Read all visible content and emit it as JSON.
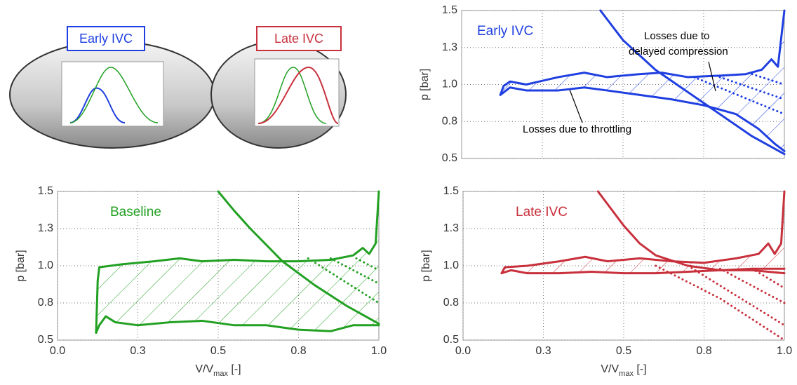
{
  "chart_data": [
    {
      "type": "line",
      "title": "Early IVC",
      "title_color": "#1f3fe0",
      "ylabel": "p [bar]",
      "xlim": [
        0,
        1
      ],
      "ylim": [
        0.5,
        1.5
      ],
      "xticks": [
        0.25,
        0.5,
        0.75
      ],
      "yticks": [
        0.5,
        {
          "value": 0.75,
          "label": "0.8"
        },
        {
          "value": 1,
          "label": "1.0"
        },
        {
          "value": 1.25,
          "label": "1.3"
        },
        1.5
      ],
      "grid": true,
      "annotations": [
        {
          "lines": [
            "Losses due to",
            "delayed compression"
          ]
        },
        {
          "lines": [
            "Losses due to throttling"
          ]
        }
      ],
      "hatch": [
        0,
        1
      ],
      "series": [
        {
          "color": "#1f3fe0",
          "x": [
            0.12,
            0.13,
            0.15,
            0.2,
            0.3,
            0.38,
            0.45,
            0.55,
            0.62,
            0.7,
            0.8,
            0.88,
            0.93,
            0.96,
            0.98,
            1.0
          ],
          "values": [
            0.93,
            0.99,
            1.02,
            1.0,
            1.05,
            1.08,
            1.05,
            1.07,
            1.08,
            1.05,
            1.06,
            1.07,
            1.1,
            1.17,
            1.12,
            1.5
          ]
        },
        {
          "color": "#1f3fe0",
          "x": [
            0.12,
            0.15,
            0.2,
            0.3,
            0.38,
            0.45,
            0.55,
            0.65,
            0.75,
            0.85,
            0.92,
            0.97,
            1.0
          ],
          "values": [
            0.93,
            0.98,
            0.96,
            0.96,
            0.98,
            0.96,
            0.93,
            0.9,
            0.86,
            0.8,
            0.7,
            0.6,
            0.55
          ]
        },
        {
          "color": "#1f3fe0",
          "x": [
            0.43,
            0.5,
            0.6,
            0.7,
            0.8,
            0.9,
            1.0
          ],
          "values": [
            1.5,
            1.3,
            1.1,
            0.95,
            0.8,
            0.65,
            0.53
          ]
        },
        {
          "color": "#1f3fe0",
          "dash": true,
          "x": [
            0.72,
            1.0
          ],
          "values": [
            1.05,
            0.8
          ]
        },
        {
          "color": "#1f3fe0",
          "dash": true,
          "x": [
            0.8,
            1.0
          ],
          "values": [
            1.05,
            0.9
          ]
        },
        {
          "color": "#1f3fe0",
          "dash": true,
          "x": [
            0.9,
            1.0
          ],
          "values": [
            1.07,
            1.0
          ]
        }
      ]
    },
    {
      "type": "line",
      "title": "Baseline",
      "title_color": "#22a022",
      "ylabel": "p [bar]",
      "xlabel_parts": [
        "V/V",
        "max",
        " [-]"
      ],
      "xlim": [
        0,
        1
      ],
      "ylim": [
        0.5,
        1.5
      ],
      "xticks": [
        {
          "value": 0,
          "label": "0.0"
        },
        {
          "value": 0.25,
          "label": "0.3"
        },
        0.5,
        {
          "value": 0.75,
          "label": "0.8"
        },
        {
          "value": 1,
          "label": "1.0"
        }
      ],
      "yticks": [
        0.5,
        {
          "value": 0.75,
          "label": "0.8"
        },
        {
          "value": 1,
          "label": "1.0"
        },
        {
          "value": 1.25,
          "label": "1.3"
        },
        1.5
      ],
      "grid": true,
      "hatch": [
        0,
        1
      ],
      "series": [
        {
          "color": "#22a022",
          "x": [
            0.12,
            0.125,
            0.13,
            0.2,
            0.3,
            0.38,
            0.45,
            0.55,
            0.65,
            0.75,
            0.85,
            0.92,
            0.95,
            0.97,
            0.99,
            1.0
          ],
          "values": [
            0.55,
            0.9,
            0.99,
            1.01,
            1.03,
            1.05,
            1.03,
            1.04,
            1.03,
            1.03,
            1.04,
            1.07,
            1.12,
            1.08,
            1.15,
            1.5
          ]
        },
        {
          "color": "#22a022",
          "x": [
            0.12,
            0.13,
            0.15,
            0.18,
            0.25,
            0.35,
            0.45,
            0.55,
            0.65,
            0.75,
            0.85,
            0.92,
            1.0
          ],
          "values": [
            0.55,
            0.6,
            0.66,
            0.62,
            0.6,
            0.62,
            0.63,
            0.6,
            0.6,
            0.57,
            0.56,
            0.6,
            0.6
          ]
        },
        {
          "color": "#22a022",
          "x": [
            0.5,
            0.55,
            0.6,
            0.65,
            0.7,
            0.75,
            0.8,
            0.85,
            0.9,
            0.95,
            1.0
          ],
          "values": [
            1.5,
            1.37,
            1.25,
            1.14,
            1.03,
            0.95,
            0.87,
            0.8,
            0.73,
            0.67,
            0.61
          ]
        },
        {
          "color": "#22a022",
          "dash": true,
          "x": [
            0.78,
            1.0
          ],
          "values": [
            1.05,
            0.75
          ]
        },
        {
          "color": "#22a022",
          "dash": true,
          "x": [
            0.85,
            1.0
          ],
          "values": [
            1.05,
            0.88
          ]
        },
        {
          "color": "#22a022",
          "dash": true,
          "x": [
            0.93,
            1.0
          ],
          "values": [
            1.05,
            0.97
          ]
        }
      ]
    },
    {
      "type": "line",
      "title": "Late IVC",
      "title_color": "#c8303c",
      "ylabel": "p [bar]",
      "xlabel_parts": [
        "V/V",
        "max",
        " [-]"
      ],
      "xlim": [
        0,
        1
      ],
      "ylim": [
        0.5,
        1.5
      ],
      "xticks": [
        {
          "value": 0,
          "label": "0.0"
        },
        {
          "value": 0.25,
          "label": "0.3"
        },
        0.5,
        {
          "value": 0.75,
          "label": "0.8"
        },
        {
          "value": 1,
          "label": "1.0"
        }
      ],
      "yticks": [
        0.5,
        {
          "value": 0.75,
          "label": "0.8"
        },
        {
          "value": 1,
          "label": "1.0"
        },
        {
          "value": 1.25,
          "label": "1.3"
        },
        1.5
      ],
      "grid": true,
      "hatch": [
        0,
        1
      ],
      "series": [
        {
          "color": "#c8303c",
          "x": [
            0.12,
            0.13,
            0.2,
            0.3,
            0.38,
            0.45,
            0.55,
            0.65,
            0.75,
            0.85,
            0.92,
            0.95,
            0.97,
            0.99,
            1.0
          ],
          "values": [
            0.95,
            0.99,
            1.0,
            1.03,
            1.06,
            1.03,
            1.05,
            1.03,
            1.02,
            1.05,
            1.08,
            1.15,
            1.08,
            1.15,
            1.5
          ]
        },
        {
          "color": "#c8303c",
          "x": [
            0.12,
            0.15,
            0.2,
            0.3,
            0.4,
            0.5,
            0.6,
            0.7,
            0.8,
            0.9,
            1.0
          ],
          "values": [
            0.95,
            0.97,
            0.95,
            0.95,
            0.96,
            0.95,
            0.95,
            0.96,
            0.97,
            0.97,
            0.95
          ]
        },
        {
          "color": "#c8303c",
          "x": [
            0.42,
            0.5,
            0.55,
            0.6,
            0.7,
            0.8,
            0.9,
            1.0
          ],
          "values": [
            1.5,
            1.27,
            1.15,
            1.07,
            1.0,
            0.97,
            0.98,
            0.98
          ]
        },
        {
          "color": "#c8303c",
          "dash": true,
          "x": [
            0.6,
            0.8,
            1.0
          ],
          "values": [
            1.0,
            0.78,
            0.5
          ]
        },
        {
          "color": "#c8303c",
          "dash": true,
          "x": [
            0.7,
            1.0
          ],
          "values": [
            1.0,
            0.6
          ]
        },
        {
          "color": "#c8303c",
          "dash": true,
          "x": [
            0.8,
            1.0
          ],
          "values": [
            0.98,
            0.75
          ]
        },
        {
          "color": "#c8303c",
          "dash": true,
          "x": [
            0.9,
            1.0
          ],
          "values": [
            0.98,
            0.85
          ]
        }
      ]
    }
  ],
  "insets": [
    {
      "label": "Early IVC"
    },
    {
      "label": "Late IVC"
    }
  ]
}
